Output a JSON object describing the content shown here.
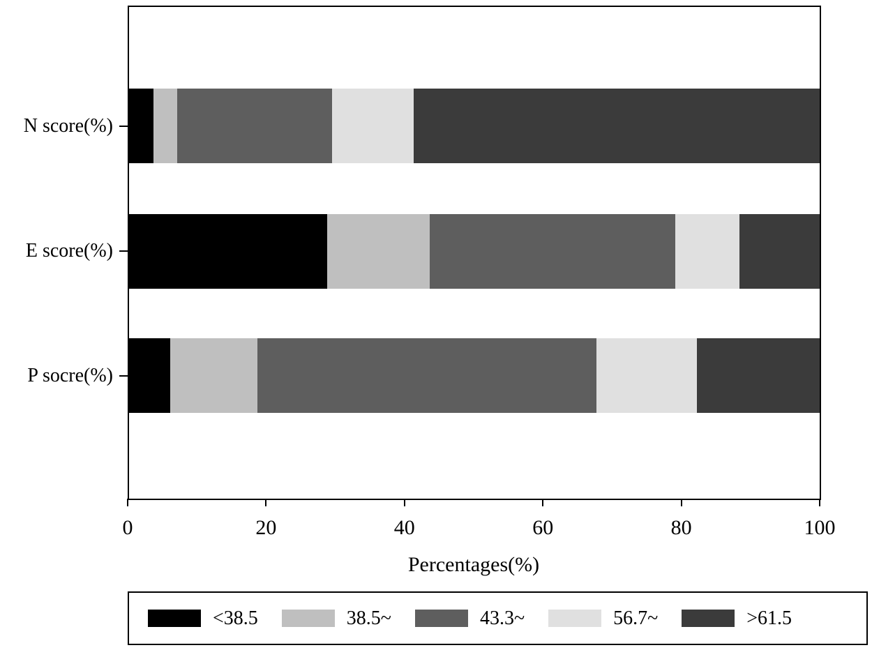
{
  "figure": {
    "background": "#ffffff",
    "axis_color": "#000000"
  },
  "chart_data": {
    "type": "bar",
    "orientation": "horizontal",
    "stacked": true,
    "title": "",
    "xlabel": "Percentages(%)",
    "ylabel": "",
    "xlim": [
      0,
      100
    ],
    "x_ticks": [
      0,
      20,
      40,
      60,
      80,
      100
    ],
    "grid": false,
    "legend_position": "bottom-box",
    "categories": [
      "N score(%)",
      "E score(%)",
      "P socre(%)"
    ],
    "series": [
      {
        "name": "<38.5",
        "color": "#000000",
        "values": [
          3.5,
          28.7,
          6.0
        ]
      },
      {
        "name": "38.5~",
        "color": "#bfbfbf",
        "values": [
          3.5,
          14.8,
          12.6
        ]
      },
      {
        "name": "43.3~",
        "color": "#5e5e5e",
        "values": [
          22.4,
          35.6,
          49.1
        ]
      },
      {
        "name": "56.7~",
        "color": "#e0e0e0",
        "values": [
          11.8,
          9.3,
          14.5
        ]
      },
      {
        "name": ">61.5",
        "color": "#3b3b3b",
        "values": [
          58.8,
          11.6,
          17.8
        ]
      }
    ]
  }
}
